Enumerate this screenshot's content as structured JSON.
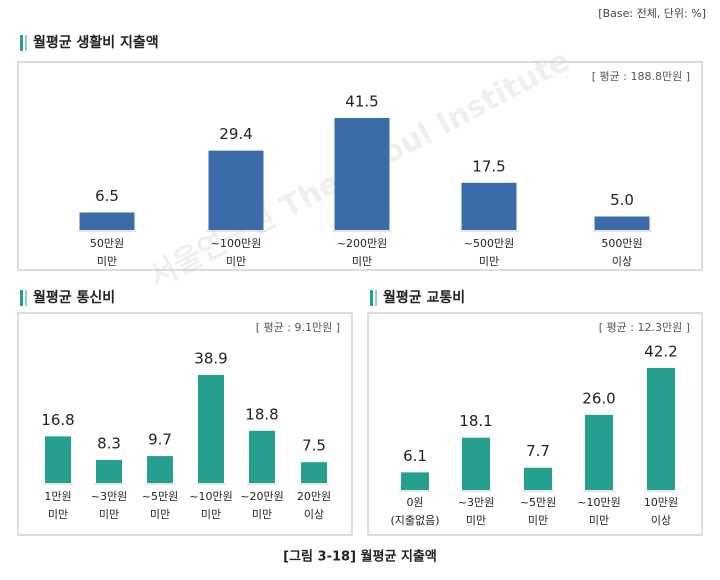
{
  "note": "[Base: 전체, 단위: %]",
  "caption": "[그림 3-18]  월평균  지출액",
  "watermark": "서울연구원 The Seoul Institute",
  "chart_data": [
    {
      "type": "bar",
      "title": "월평균 생활비 지출액",
      "annotation": "[ 평균 : 188.8만원 ]",
      "color": "#3c6ba9",
      "categories": [
        [
          "50만원",
          "미만"
        ],
        [
          "~100만원",
          "미만"
        ],
        [
          "~200만원",
          "미만"
        ],
        [
          "~500만원",
          "미만"
        ],
        [
          "500만원",
          "이상"
        ]
      ],
      "values": [
        6.5,
        29.4,
        41.5,
        17.5,
        5.0
      ],
      "value_labels": [
        "6.5",
        "29.4",
        "41.5",
        "17.5",
        "5.0"
      ]
    },
    {
      "type": "bar",
      "title": "월평균 통신비",
      "annotation": "[ 평균 : 9.1만원 ]",
      "color": "#26a08e",
      "categories": [
        [
          "1만원",
          "미만"
        ],
        [
          "~3만원",
          "미만"
        ],
        [
          "~5만원",
          "미만"
        ],
        [
          "~10만원",
          "미만"
        ],
        [
          "~20만원",
          "미만"
        ],
        [
          "20만원",
          "이상"
        ]
      ],
      "values": [
        16.8,
        8.3,
        9.7,
        38.9,
        18.8,
        7.5
      ]
    },
    {
      "type": "bar",
      "title": "월평균 교통비",
      "annotation": "[ 평균 : 12.3만원 ]",
      "color": "#26a08e",
      "categories": [
        [
          "0원",
          "(지출없음)"
        ],
        [
          "~3만원",
          "미만"
        ],
        [
          "~5만원",
          "미만"
        ],
        [
          "~10만원",
          "미만"
        ],
        [
          "10만원",
          "이상"
        ]
      ],
      "values": [
        6.1,
        18.1,
        7.7,
        26.0,
        42.2
      ],
      "value_labels": [
        "6.1",
        "18.1",
        "7.7",
        "26.0",
        "42.2"
      ]
    }
  ]
}
